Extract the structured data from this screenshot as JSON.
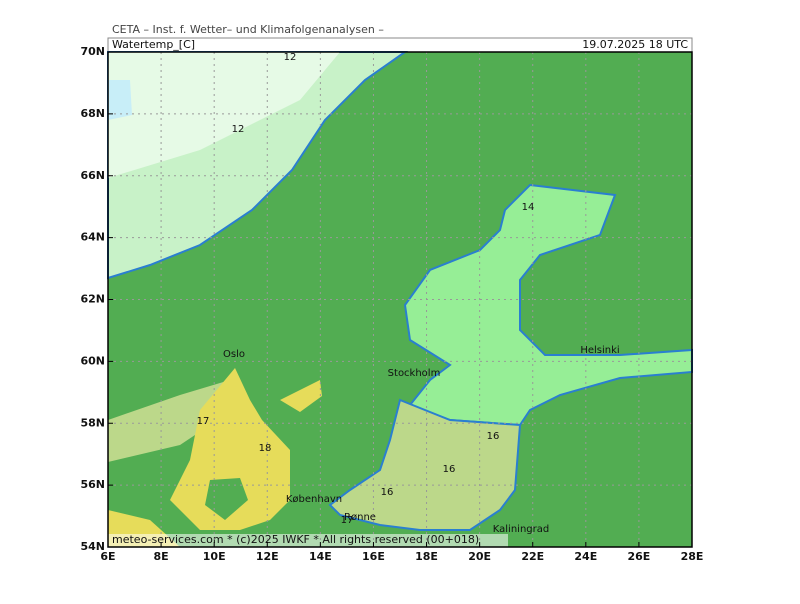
{
  "header": {
    "institute": "CETA – Inst. f. Wetter– und Klimafolgenanalysen –",
    "title": "Watertemp_[C]",
    "date": "19.07.2025  18 UTC"
  },
  "map": {
    "lat_ticks": [
      "70N",
      "68N",
      "66N",
      "64N",
      "62N",
      "60N",
      "58N",
      "56N",
      "54N"
    ],
    "lon_ticks": [
      "6E",
      "8E",
      "10E",
      "12E",
      "14E",
      "16E",
      "18E",
      "20E",
      "22E",
      "24E",
      "26E",
      "28E"
    ],
    "contour_labels": [
      "12",
      "12",
      "14",
      "16",
      "16",
      "16",
      "17",
      "18",
      "17"
    ],
    "cities": [
      "Oslo",
      "Stockholm",
      "Helsinki",
      "København",
      "Rønne",
      "Kaliningrad"
    ]
  },
  "footer": "meteo-services.com * (c)2025 IWKF * All rights reserved (00+018)"
}
